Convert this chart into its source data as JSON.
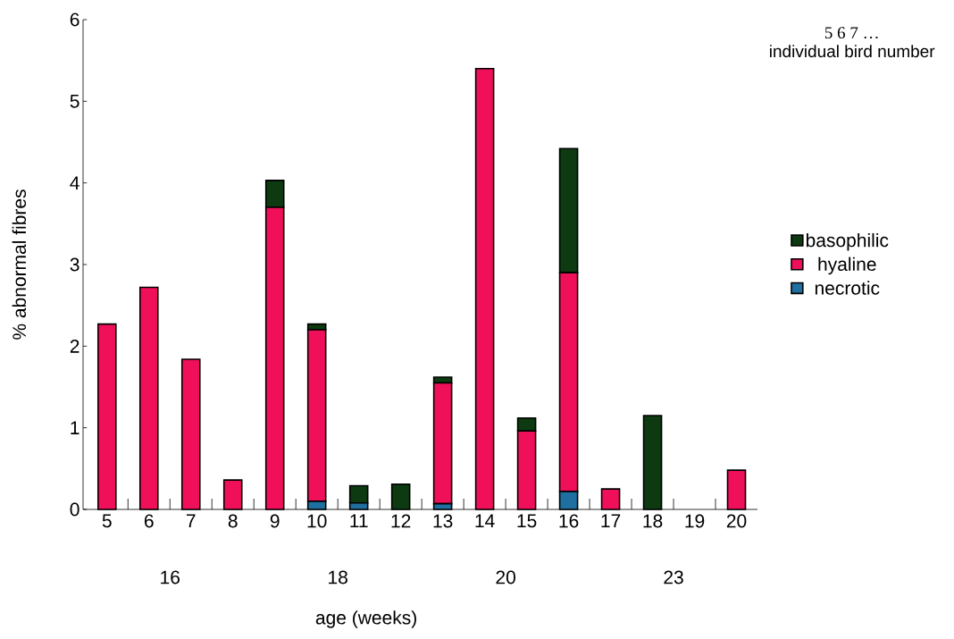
{
  "chart_data": {
    "type": "bar",
    "stacked": true,
    "xlabel": "age (weeks)",
    "ylabel": "% abnormal fibres",
    "categories": [
      "5",
      "6",
      "7",
      "8",
      "9",
      "10",
      "11",
      "12",
      "13",
      "14",
      "15",
      "16",
      "17",
      "18",
      "19",
      "20"
    ],
    "series": [
      {
        "name": "necrotic",
        "color": "#1f6fa0",
        "values": [
          0,
          0,
          0,
          0,
          0,
          0.1,
          0.08,
          0,
          0.07,
          0,
          0,
          0.22,
          0,
          0,
          0,
          0
        ]
      },
      {
        "name": "hyaline",
        "color": "#f0105a",
        "values": [
          2.27,
          2.72,
          1.84,
          0.36,
          3.7,
          2.1,
          0,
          0,
          1.48,
          5.4,
          0.96,
          2.68,
          0.25,
          0,
          0,
          0.48
        ]
      },
      {
        "name": "basophilic",
        "color": "#0d3a10",
        "values": [
          0,
          0,
          0,
          0,
          0.33,
          0.07,
          0.21,
          0.31,
          0.07,
          0,
          0.16,
          1.52,
          0,
          1.15,
          0,
          0
        ]
      }
    ],
    "ylim": [
      0,
      6
    ],
    "yticks": [
      0,
      1,
      2,
      3,
      4,
      5,
      6
    ],
    "legend": "right",
    "annotations": [
      "5 6 7 …",
      "individual bird number",
      "16",
      "18",
      "20",
      "23"
    ]
  }
}
